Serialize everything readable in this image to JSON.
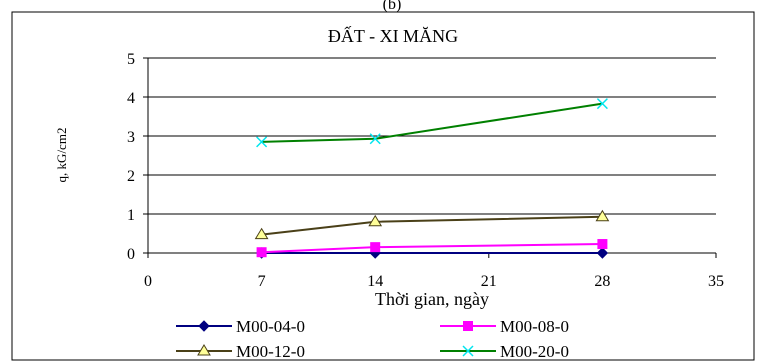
{
  "chart_data": {
    "type": "line",
    "title": "ĐẤT - XI MĂNG",
    "top_label": "(b)",
    "xlabel": "Thời gian, ngày",
    "ylabel": "q, kG/cm2",
    "xlim": [
      0,
      35
    ],
    "ylim": [
      0,
      5
    ],
    "x_ticks": [
      "0",
      "7",
      "14",
      "21",
      "28",
      "35"
    ],
    "y_ticks": [
      "0",
      "1",
      "2",
      "3",
      "4",
      "5"
    ],
    "grid": "horizontal",
    "legend_position": "bottom",
    "x": [
      7,
      14,
      28
    ],
    "series": [
      {
        "name": "M00-04-0",
        "values": [
          0.0,
          0.0,
          0.0
        ],
        "color": "#000080",
        "marker": "diamond"
      },
      {
        "name": "M00-08-0",
        "values": [
          0.02,
          0.15,
          0.23
        ],
        "color": "#ff00ff",
        "marker": "square"
      },
      {
        "name": "M00-12-0",
        "values": [
          0.47,
          0.8,
          0.93
        ],
        "color": "#4a4018",
        "marker_fill": "#ffff99",
        "marker": "triangle"
      },
      {
        "name": "M00-20-0",
        "values": [
          2.85,
          2.93,
          3.83
        ],
        "color": "#008000",
        "marker_color": "#00e5ee",
        "marker": "x"
      }
    ]
  }
}
